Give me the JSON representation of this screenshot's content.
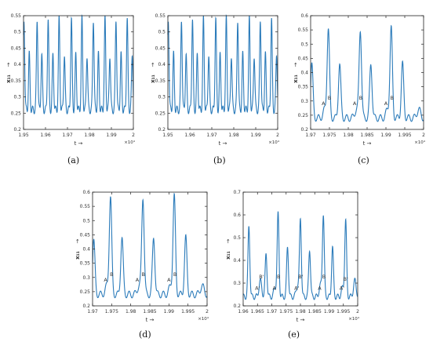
{
  "chart_data": [
    {
      "type": "line",
      "caption": "(a)",
      "xlabel": "t →",
      "ylabel": "x₁₁",
      "ylabel_arrow": "→",
      "x_multiplier": "×10⁴",
      "xlim": [
        1.95,
        2.0
      ],
      "ylim": [
        0.2,
        0.55
      ],
      "xticks": [
        1.95,
        1.96,
        1.97,
        1.98,
        1.99,
        2.0
      ],
      "xtick_labels": [
        "1.95",
        "1.96",
        "1.97",
        "1.98",
        "1.99",
        "2"
      ],
      "yticks": [
        0.2,
        0.25,
        0.3,
        0.35,
        0.4,
        0.45,
        0.5,
        0.55
      ],
      "ytick_labels": [
        "0.2",
        "0.25",
        "0.3",
        "0.35",
        "0.4",
        "0.45",
        "0.5",
        "0.55"
      ],
      "series": [
        {
          "color": "#2b7bba",
          "baseline": 0.26,
          "events": [
            {
              "x": 1.9502,
              "y": 0.54
            },
            {
              "x": 1.9526,
              "y": 0.43
            },
            {
              "x": 1.9562,
              "y": 0.54
            },
            {
              "x": 1.9583,
              "y": 0.43
            },
            {
              "x": 1.9612,
              "y": 0.54
            },
            {
              "x": 1.9634,
              "y": 0.43
            },
            {
              "x": 1.9662,
              "y": 0.54
            },
            {
              "x": 1.9686,
              "y": 0.43
            },
            {
              "x": 1.9718,
              "y": 0.54
            },
            {
              "x": 1.9738,
              "y": 0.43
            },
            {
              "x": 1.9766,
              "y": 0.54
            },
            {
              "x": 1.9789,
              "y": 0.43
            },
            {
              "x": 1.9818,
              "y": 0.54
            },
            {
              "x": 1.9841,
              "y": 0.43
            },
            {
              "x": 1.9871,
              "y": 0.54
            },
            {
              "x": 1.9893,
              "y": 0.43
            },
            {
              "x": 1.9921,
              "y": 0.54
            },
            {
              "x": 1.9944,
              "y": 0.43
            },
            {
              "x": 1.9972,
              "y": 0.54
            },
            {
              "x": 1.9995,
              "y": 0.43
            }
          ]
        }
      ],
      "annotations": []
    },
    {
      "type": "line",
      "caption": "(b)",
      "xlabel": "t →",
      "ylabel": "x₁₁",
      "ylabel_arrow": "→",
      "x_multiplier": "×10⁴",
      "xlim": [
        1.95,
        2.0
      ],
      "ylim": [
        0.2,
        0.55
      ],
      "xticks": [
        1.95,
        1.96,
        1.97,
        1.98,
        1.99,
        2.0
      ],
      "xtick_labels": [
        "1.95",
        "1.96",
        "1.97",
        "1.98",
        "1.99",
        "2"
      ],
      "yticks": [
        0.2,
        0.25,
        0.3,
        0.35,
        0.4,
        0.45,
        0.5,
        0.55
      ],
      "ytick_labels": [
        "0.2",
        "0.25",
        "0.3",
        "0.35",
        "0.4",
        "0.45",
        "0.5",
        "0.55"
      ],
      "series": [
        {
          "color": "#2b7bba",
          "baseline": 0.26,
          "events": [
            {
              "x": 1.9502,
              "y": 0.54
            },
            {
              "x": 1.9526,
              "y": 0.43
            },
            {
              "x": 1.9562,
              "y": 0.54
            },
            {
              "x": 1.9583,
              "y": 0.43
            },
            {
              "x": 1.9612,
              "y": 0.54
            },
            {
              "x": 1.9634,
              "y": 0.43
            },
            {
              "x": 1.9662,
              "y": 0.54
            },
            {
              "x": 1.9686,
              "y": 0.43
            },
            {
              "x": 1.9718,
              "y": 0.54
            },
            {
              "x": 1.9738,
              "y": 0.43
            },
            {
              "x": 1.9766,
              "y": 0.54
            },
            {
              "x": 1.9789,
              "y": 0.43
            },
            {
              "x": 1.9818,
              "y": 0.54
            },
            {
              "x": 1.9841,
              "y": 0.43
            },
            {
              "x": 1.9871,
              "y": 0.54
            },
            {
              "x": 1.9893,
              "y": 0.43
            },
            {
              "x": 1.9921,
              "y": 0.54
            },
            {
              "x": 1.9944,
              "y": 0.43
            },
            {
              "x": 1.9972,
              "y": 0.54
            },
            {
              "x": 1.9995,
              "y": 0.43
            }
          ]
        }
      ],
      "annotations": []
    },
    {
      "type": "line",
      "caption": "(c)",
      "xlabel": "t →",
      "ylabel": "x₁₁",
      "ylabel_arrow": "→",
      "x_multiplier": "×10⁴",
      "xlim": [
        1.97,
        2.0
      ],
      "ylim": [
        0.2,
        0.6
      ],
      "xticks": [
        1.97,
        1.975,
        1.98,
        1.985,
        1.99,
        1.995,
        2.0
      ],
      "xtick_labels": [
        "1.97",
        "1.975",
        "1.98",
        "1.985",
        "1.99",
        "1.995",
        "2"
      ],
      "yticks": [
        0.2,
        0.25,
        0.3,
        0.35,
        0.4,
        0.45,
        0.5,
        0.55,
        0.6
      ],
      "ytick_labels": [
        "0.2",
        "0.25",
        "0.3",
        "0.35",
        "0.4",
        "0.45",
        "0.5",
        "0.55",
        "0.6"
      ],
      "series": [
        {
          "color": "#2b7bba",
          "baseline": 0.24,
          "events": [
            {
              "x": 1.9703,
              "y": 0.43
            },
            {
              "x": 1.9738,
              "y": 0.27
            },
            {
              "x": 1.9747,
              "y": 0.55
            },
            {
              "x": 1.9777,
              "y": 0.43
            },
            {
              "x": 1.9822,
              "y": 0.27
            },
            {
              "x": 1.9832,
              "y": 0.55
            },
            {
              "x": 1.986,
              "y": 0.43
            },
            {
              "x": 1.9905,
              "y": 0.27
            },
            {
              "x": 1.9914,
              "y": 0.55
            },
            {
              "x": 1.9944,
              "y": 0.43
            },
            {
              "x": 1.9987,
              "y": 0.27
            }
          ]
        }
      ],
      "annotations": [
        {
          "x": 1.9734,
          "y": 0.285,
          "text": "A"
        },
        {
          "x": 1.975,
          "y": 0.305,
          "text": "B"
        },
        {
          "x": 1.9817,
          "y": 0.285,
          "text": "A"
        },
        {
          "x": 1.9833,
          "y": 0.305,
          "text": "B"
        },
        {
          "x": 1.99,
          "y": 0.285,
          "text": "A"
        },
        {
          "x": 1.9916,
          "y": 0.305,
          "text": "B"
        }
      ]
    },
    {
      "type": "line",
      "caption": "(d)",
      "xlabel": "t →",
      "ylabel": "x₁₁",
      "ylabel_arrow": "→",
      "x_multiplier": "×10⁴",
      "xlim": [
        1.97,
        2.0
      ],
      "ylim": [
        0.2,
        0.6
      ],
      "xticks": [
        1.97,
        1.975,
        1.98,
        1.985,
        1.99,
        1.995,
        2.0
      ],
      "xtick_labels": [
        "1.97",
        "1.975",
        "1.98",
        "1.985",
        "1.99",
        "1.995",
        "2"
      ],
      "yticks": [
        0.2,
        0.25,
        0.3,
        0.35,
        0.4,
        0.45,
        0.5,
        0.55,
        0.6
      ],
      "ytick_labels": [
        "0.2",
        "0.25",
        "0.3",
        "0.35",
        "0.4",
        "0.45",
        "0.5",
        "0.55",
        "0.6"
      ],
      "series": [
        {
          "color": "#2b7bba",
          "baseline": 0.24,
          "events": [
            {
              "x": 1.9703,
              "y": 0.43
            },
            {
              "x": 1.9738,
              "y": 0.27
            },
            {
              "x": 1.9747,
              "y": 0.58
            },
            {
              "x": 1.9777,
              "y": 0.44
            },
            {
              "x": 1.9822,
              "y": 0.27
            },
            {
              "x": 1.9832,
              "y": 0.58
            },
            {
              "x": 1.986,
              "y": 0.44
            },
            {
              "x": 1.9905,
              "y": 0.27
            },
            {
              "x": 1.9914,
              "y": 0.58
            },
            {
              "x": 1.9944,
              "y": 0.44
            },
            {
              "x": 1.9987,
              "y": 0.27
            }
          ]
        }
      ],
      "annotations": [
        {
          "x": 1.9734,
          "y": 0.285,
          "text": "A"
        },
        {
          "x": 1.975,
          "y": 0.305,
          "text": "B"
        },
        {
          "x": 1.9817,
          "y": 0.285,
          "text": "A"
        },
        {
          "x": 1.9833,
          "y": 0.305,
          "text": "B"
        },
        {
          "x": 1.99,
          "y": 0.285,
          "text": "A"
        },
        {
          "x": 1.9916,
          "y": 0.305,
          "text": "B"
        }
      ]
    },
    {
      "type": "line",
      "caption": "(e)",
      "xlabel": "t →",
      "ylabel": "x₁₁",
      "ylabel_arrow": "→",
      "x_multiplier": "×10⁴",
      "xlim": [
        1.96,
        2.0
      ],
      "ylim": [
        0.2,
        0.7
      ],
      "xticks": [
        1.96,
        1.965,
        1.97,
        1.975,
        1.98,
        1.985,
        1.99,
        1.995,
        2.0
      ],
      "xtick_labels": [
        "1.96",
        "1.965",
        "1.97",
        "1.975",
        "1.98",
        "1.985",
        "1.99",
        "1.995",
        "2"
      ],
      "yticks": [
        0.2,
        0.3,
        0.4,
        0.5,
        0.6,
        0.7
      ],
      "ytick_labels": [
        "0.2",
        "0.3",
        "0.4",
        "0.5",
        "0.6",
        "0.7"
      ],
      "series": [
        {
          "color": "#2b7bba",
          "baseline": 0.24,
          "events": [
            {
              "x": 1.962,
              "y": 0.55
            },
            {
              "x": 1.966,
              "y": 0.31
            },
            {
              "x": 1.968,
              "y": 0.43
            },
            {
              "x": 1.9712,
              "y": 0.28
            },
            {
              "x": 1.9722,
              "y": 0.6
            },
            {
              "x": 1.9755,
              "y": 0.46
            },
            {
              "x": 1.979,
              "y": 0.29
            },
            {
              "x": 1.98,
              "y": 0.58
            },
            {
              "x": 1.9832,
              "y": 0.45
            },
            {
              "x": 1.987,
              "y": 0.29
            },
            {
              "x": 1.988,
              "y": 0.6
            },
            {
              "x": 1.9912,
              "y": 0.46
            },
            {
              "x": 1.9948,
              "y": 0.28
            },
            {
              "x": 1.9958,
              "y": 0.57
            },
            {
              "x": 1.999,
              "y": 0.31
            }
          ]
        }
      ],
      "annotations": [
        {
          "x": 1.965,
          "y": 0.27,
          "text": "A'"
        },
        {
          "x": 1.9664,
          "y": 0.32,
          "text": "B'"
        },
        {
          "x": 1.9709,
          "y": 0.27,
          "text": "A"
        },
        {
          "x": 1.9724,
          "y": 0.32,
          "text": "B"
        },
        {
          "x": 1.9787,
          "y": 0.27,
          "text": "A'"
        },
        {
          "x": 1.9801,
          "y": 0.32,
          "text": "B'"
        },
        {
          "x": 1.9867,
          "y": 0.27,
          "text": "A"
        },
        {
          "x": 1.9882,
          "y": 0.32,
          "text": "B"
        },
        {
          "x": 1.9945,
          "y": 0.27,
          "text": "A'"
        },
        {
          "x": 1.9958,
          "y": 0.31,
          "text": "B'"
        }
      ]
    }
  ]
}
